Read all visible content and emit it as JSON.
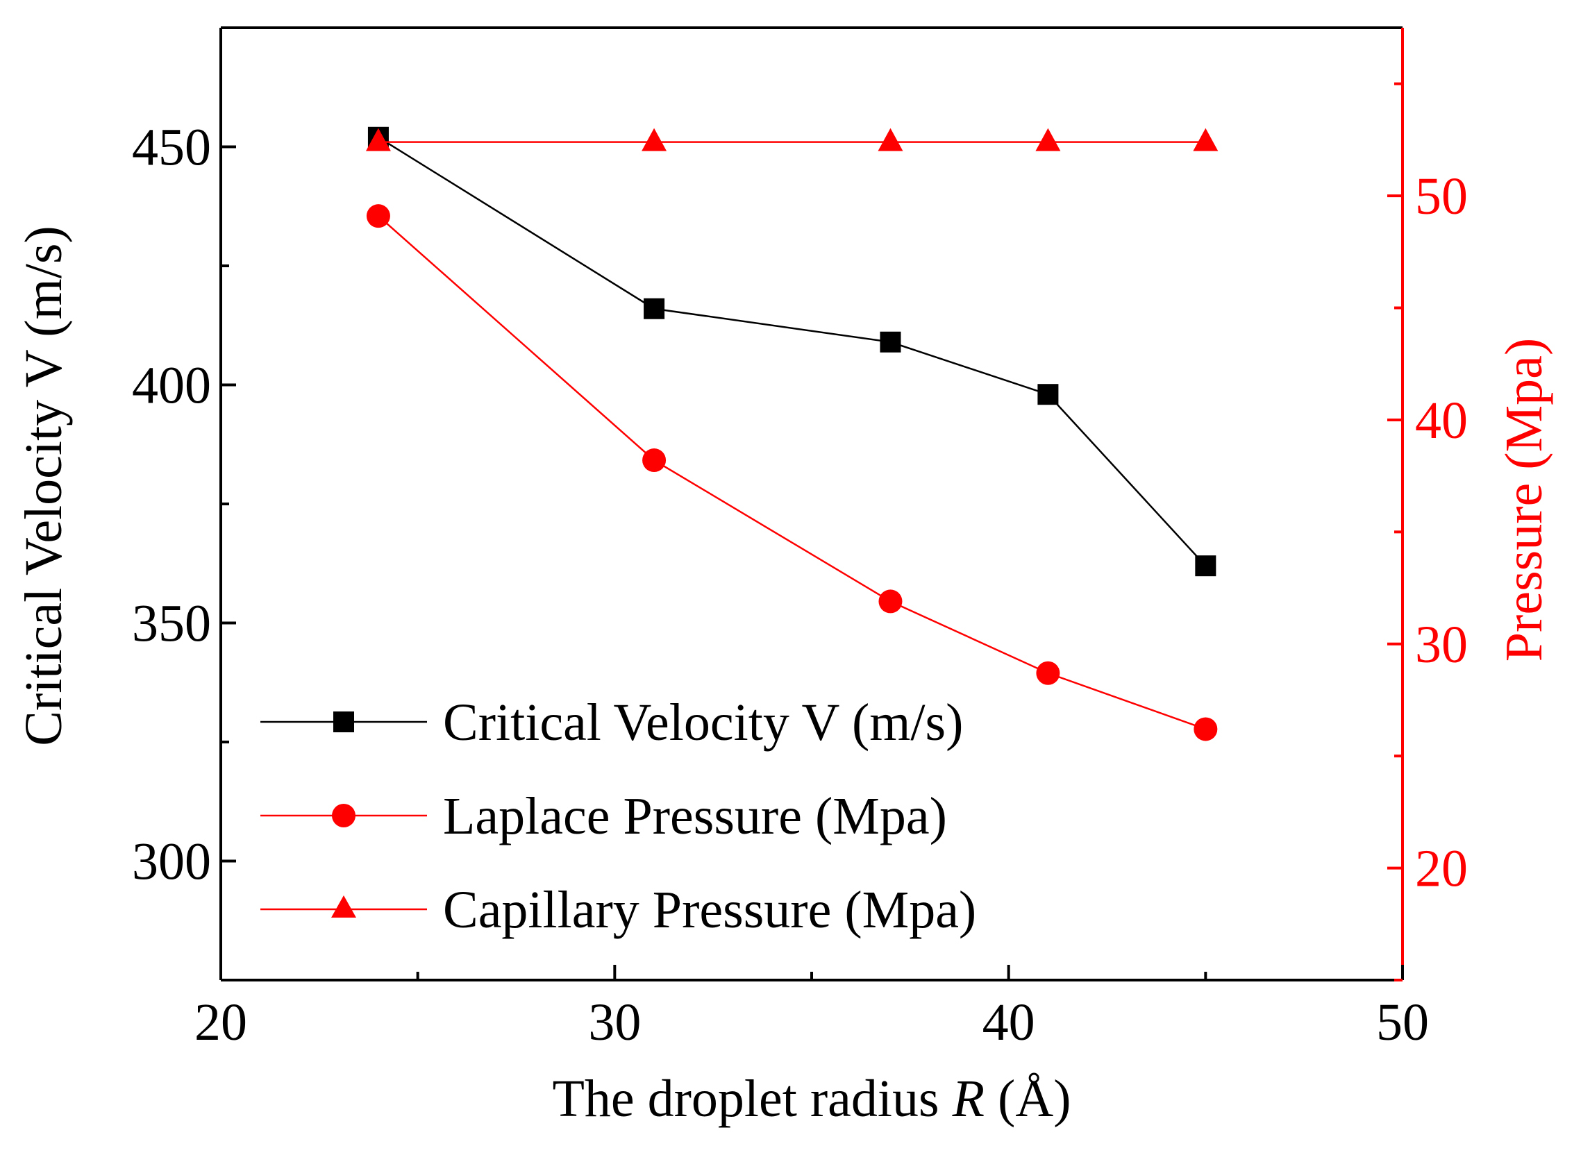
{
  "chart_data": {
    "type": "line",
    "title": "",
    "xlabel": {
      "prefix": "The droplet radius ",
      "symbol": "R",
      "suffix": " (Å)"
    },
    "ylabel_left": "Critical Velocity V (m/s)",
    "ylabel_right": "Pressure (Mpa)",
    "x": [
      24,
      31,
      37,
      41,
      45
    ],
    "xlim": [
      20,
      50
    ],
    "xticks": [
      "20",
      "30",
      "40",
      "50"
    ],
    "ylim_left": [
      275,
      475
    ],
    "yticks_left": [
      "300",
      "350",
      "400",
      "450"
    ],
    "ylim_right": [
      15,
      57.5
    ],
    "yticks_right": [
      "20",
      "30",
      "40",
      "50"
    ],
    "legend_position": "lower-left",
    "series": [
      {
        "name": "Critical Velocity V (m/s)",
        "axis": "left",
        "marker": "square",
        "color": "#000000",
        "values": [
          452,
          416,
          409,
          398,
          362
        ]
      },
      {
        "name": "Laplace Pressure (Mpa)",
        "axis": "right",
        "marker": "circle",
        "color": "#ff0000",
        "values": [
          49.1,
          38.2,
          31.9,
          28.7,
          26.2
        ]
      },
      {
        "name": "Capillary Pressure (Mpa)",
        "axis": "right",
        "marker": "triangle",
        "color": "#ff0000",
        "values": [
          52.4,
          52.4,
          52.4,
          52.4,
          52.4
        ]
      }
    ],
    "colors": {
      "left_axis": "#000000",
      "right_axis": "#ff0000"
    }
  }
}
